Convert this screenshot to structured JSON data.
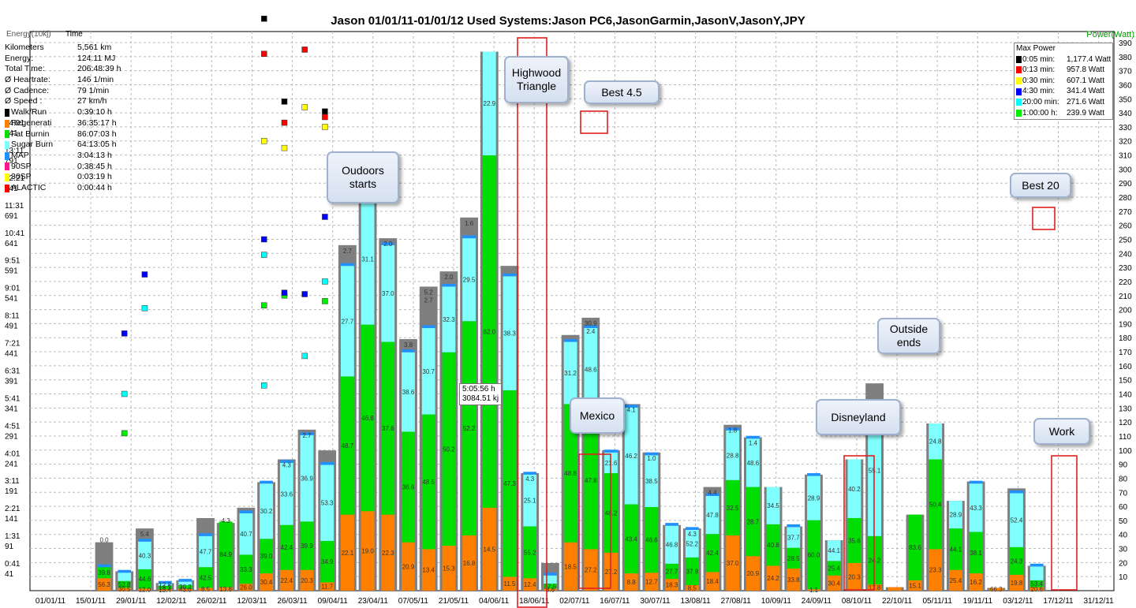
{
  "chart_data": {
    "type": "bar",
    "title": "Jason  01/01/11-01/01/12  Used Systems:Jason PC6,JasonGarmin,JasonV,JasonY,JPY",
    "left_axis_labels": [
      "Energy(10kj)",
      "Time"
    ],
    "right_axis_label": "Power(Watt)",
    "x_ticks": [
      "01/01/11",
      "15/01/11",
      "29/01/11",
      "12/02/11",
      "26/02/11",
      "12/03/11",
      "26/03/11",
      "09/04/11",
      "23/04/11",
      "07/05/11",
      "21/05/11",
      "04/06/11",
      "18/06/11",
      "02/07/11",
      "16/07/11",
      "30/07/11",
      "13/08/11",
      "27/08/11",
      "10/09/11",
      "24/09/11",
      "08/10/11",
      "22/10/11",
      "05/11/11",
      "19/11/11",
      "03/12/11",
      "17/12/11",
      "31/12/11"
    ],
    "y_right_range": [
      0,
      390
    ],
    "y_right_ticks": [
      10,
      20,
      30,
      40,
      50,
      60,
      70,
      80,
      90,
      100,
      110,
      120,
      130,
      140,
      150,
      160,
      170,
      180,
      190,
      200,
      210,
      220,
      230,
      240,
      250,
      260,
      270,
      280,
      290,
      300,
      310,
      320,
      330,
      340,
      350,
      360,
      370,
      380,
      390
    ],
    "y_left_energy_ticks": [
      "41",
      "91",
      "141",
      "191",
      "241",
      "291",
      "341",
      "391",
      "441",
      "491",
      "541",
      "591",
      "641",
      "691",
      "741",
      "791",
      "841"
    ],
    "y_left_time_ticks": [
      "0:41",
      "1:31",
      "2:21",
      "3:11",
      "4:01",
      "4:51",
      "5:41",
      "6:31",
      "7:21",
      "8:11",
      "9:01",
      "9:51",
      "10:41",
      "11:31",
      "12:21",
      "13:11",
      "14:01"
    ],
    "grid": true,
    "series_colors": {
      "total": "#7f7f7f",
      "regeneration": "#ff8000",
      "fat_burning": "#00dd00",
      "sugar_burning": "#80ffff",
      "map": "#1e90ff",
      "sp90": "#ff1493",
      "sp30": "#ffff00",
      "alactic": "#ff0000",
      "walk_run": "#000000"
    },
    "weeks": [
      {
        "x": "29/01/11",
        "total": 70,
        "reg": 18,
        "fat": 16,
        "sug": 0,
        "lbl": [
          "56.3",
          "39.8",
          "0.0"
        ]
      },
      {
        "x": "05/02/11",
        "total": 28,
        "reg": 4,
        "fat": 10,
        "sug": 12,
        "lbl": [
          "30.5",
          "52.8"
        ]
      },
      {
        "x": "12/02/11",
        "total": 90,
        "reg": 3,
        "fat": 28,
        "sug": 40,
        "lbl": [
          "12.0",
          "44.6",
          "40.3",
          "5.4"
        ]
      },
      {
        "x": "19/02/11",
        "total": 11,
        "reg": 2,
        "fat": 5,
        "sug": 3,
        "lbl": [
          "13.4",
          "13.3",
          "12.8"
        ]
      },
      {
        "x": "26/02/11",
        "total": 15,
        "reg": 3,
        "fat": 5,
        "sug": 5,
        "lbl": [
          "43.0",
          "30.2"
        ]
      },
      {
        "x": "03/03/11",
        "total": 105,
        "reg": 4,
        "fat": 30,
        "sug": 45,
        "lbl": [
          "8.5",
          "42.5",
          "47.7"
        ]
      },
      {
        "x": "26/03/11",
        "total": 98,
        "reg": 5,
        "fat": 95,
        "sug": 0,
        "lbl": [
          "13.8",
          "84.9",
          "4.3"
        ]
      },
      {
        "x": "02/04/11",
        "total": 120,
        "reg": 10,
        "fat": 42,
        "sug": 60,
        "lbl": [
          "26.0",
          "33.3",
          "40.7"
        ]
      },
      {
        "x": "09/04/11",
        "total": 157,
        "reg": 25,
        "fat": 50,
        "sug": 80,
        "lbl": [
          "30.4",
          "39.0",
          "30.2"
        ]
      },
      {
        "x": "16/04/11",
        "total": 190,
        "reg": 30,
        "fat": 65,
        "sug": 90,
        "lbl": [
          "22.4",
          "42.4",
          "33.6",
          "4.3"
        ]
      },
      {
        "x": "23/04/11",
        "total": 233,
        "reg": 30,
        "fat": 70,
        "sug": 125,
        "lbl": [
          "20.3",
          "39.9",
          "36.9",
          "2.7"
        ]
      },
      {
        "x": "30/04/11",
        "total": 203,
        "reg": 12,
        "fat": 60,
        "sug": 110,
        "lbl": [
          "11.7",
          "34.9",
          "53.3"
        ]
      },
      {
        "x": "07/05/11",
        "total": 500,
        "reg": 110,
        "fat": 200,
        "sug": 160,
        "lbl": [
          "22.1",
          "48.7",
          "27.7",
          "2.7"
        ]
      },
      {
        "x": "14/05/11",
        "total": 590,
        "reg": 115,
        "fat": 270,
        "sug": 190,
        "lbl": [
          "19.0",
          "46.8",
          "31.1",
          "2.4"
        ]
      },
      {
        "x": "21/05/11",
        "total": 510,
        "reg": 110,
        "fat": 250,
        "sug": 140,
        "lbl": [
          "22.3",
          "37.6",
          "37.0",
          "2.0"
        ]
      },
      {
        "x": "28/05/11",
        "total": 364,
        "reg": 70,
        "fat": 160,
        "sug": 115,
        "lbl": [
          "20.9",
          "36.6",
          "38.6",
          "3.8"
        ]
      },
      {
        "x": "04/06/11",
        "total": 440,
        "reg": 60,
        "fat": 195,
        "sug": 125,
        "lbl": [
          "13.4",
          "48.5",
          "30.7",
          "5.2",
          "2.7"
        ]
      },
      {
        "x": "11/06/11",
        "total": 462,
        "reg": 65,
        "fat": 280,
        "sug": 95,
        "lbl": [
          "15.3",
          "50.2",
          "32.3",
          "2.0"
        ]
      },
      {
        "x": "18/06/11",
        "total": 540,
        "reg": 80,
        "fat": 310,
        "sug": 120,
        "lbl": [
          "16.8",
          "52.2",
          "29.5",
          "1.6"
        ]
      },
      {
        "x": "25/06/11",
        "total": 780,
        "reg": 120,
        "fat": 510,
        "sug": 150,
        "lbl": [
          "14.5",
          "62.0",
          "22.9"
        ]
      },
      {
        "x": "02/07/11",
        "total": 470,
        "reg": 20,
        "fat": 270,
        "sug": 165,
        "lbl": [
          "11.5",
          "47.3",
          "38.3"
        ]
      },
      {
        "x": "09/07/11",
        "total": 170,
        "reg": 18,
        "fat": 75,
        "sug": 75,
        "lbl": [
          "12.4",
          "55.2",
          "25.1",
          "4.3"
        ]
      },
      {
        "x": "16/07/11",
        "total": 40,
        "reg": 3,
        "fat": 7,
        "sug": 12,
        "lbl": [
          "3.6",
          "37.5"
        ]
      },
      {
        "x": "23/07/11",
        "total": 370,
        "reg": 70,
        "fat": 200,
        "sug": 90,
        "lbl": [
          "18.5",
          "48.8",
          "31.2"
        ]
      },
      {
        "x": "30/07/11",
        "total": 395,
        "reg": 60,
        "fat": 200,
        "sug": 120,
        "lbl": [
          "27.2",
          "47.8",
          "48.6",
          "30.9",
          "2.4"
        ]
      },
      {
        "x": "06/08/11",
        "total": 203,
        "reg": 55,
        "fat": 115,
        "sug": 30,
        "lbl": [
          "27.2",
          "48.2",
          "21.6"
        ]
      },
      {
        "x": "13/08/11",
        "total": 270,
        "reg": 25,
        "fat": 100,
        "sug": 140,
        "lbl": [
          "8.8",
          "43.4",
          "46.2",
          "4.1"
        ]
      },
      {
        "x": "20/08/11",
        "total": 200,
        "reg": 26,
        "fat": 95,
        "sug": 75,
        "lbl": [
          "12.7",
          "46.6",
          "38.5",
          "1.0"
        ]
      },
      {
        "x": "27/08/11",
        "total": 95,
        "reg": 17,
        "fat": 22,
        "sug": 55,
        "lbl": [
          "18.3",
          "27.7",
          "46.8"
        ]
      },
      {
        "x": "03/09/11",
        "total": 90,
        "reg": 8,
        "fat": 40,
        "sug": 40,
        "lbl": [
          "8.5",
          "37.8",
          "52.2",
          "4.3"
        ]
      },
      {
        "x": "10/09/11",
        "total": 150,
        "reg": 27,
        "fat": 55,
        "sug": 55,
        "lbl": [
          "18.4",
          "42.4",
          "47.8",
          "4.4"
        ]
      },
      {
        "x": "17/09/11",
        "total": 240,
        "reg": 80,
        "fat": 80,
        "sug": 72,
        "lbl": [
          "37.0",
          "32.5",
          "28.8",
          "1.8"
        ]
      },
      {
        "x": "24/09/11",
        "total": 222,
        "reg": 50,
        "fat": 100,
        "sug": 70,
        "lbl": [
          "20.9",
          "28.7",
          "48.6",
          "1.4"
        ]
      },
      {
        "x": "01/10/11",
        "total": 150,
        "reg": 36,
        "fat": 60,
        "sug": 54,
        "lbl": [
          "24.2",
          "40.8",
          "34.5"
        ]
      },
      {
        "x": "08/10/11",
        "total": 93,
        "reg": 32,
        "fat": 30,
        "sug": 30,
        "lbl": [
          "33.8",
          "28.5",
          "37.7"
        ]
      },
      {
        "x": "15/10/11",
        "total": 168,
        "reg": 2,
        "fat": 100,
        "sug": 64,
        "lbl": [
          "1.1",
          "60.0",
          "28.9"
        ]
      },
      {
        "x": "22/10/11",
        "total": 73,
        "reg": 22,
        "fat": 21,
        "sug": 30,
        "lbl": [
          "30.4",
          "25.4",
          "44.1"
        ]
      },
      {
        "x": "29/10/11",
        "total": 190,
        "reg": 40,
        "fat": 65,
        "sug": 85,
        "lbl": [
          "20.3",
          "35.6",
          "40.2"
        ]
      },
      {
        "x": "05/11/11",
        "total": 300,
        "reg": 9,
        "fat": 70,
        "sug": 190,
        "lbl": [
          "17.8",
          "24.2",
          "55.1"
        ]
      },
      {
        "x": "12/11/11",
        "total": 5,
        "reg": 5,
        "fat": 0,
        "sug": 0,
        "lbl": []
      },
      {
        "x": "19/11/11",
        "total": 110,
        "reg": 15,
        "fat": 95,
        "sug": 0,
        "lbl": [
          "15.1",
          "83.6"
        ]
      },
      {
        "x": "26/11/11",
        "total": 242,
        "reg": 60,
        "fat": 130,
        "sug": 52,
        "lbl": [
          "23.3",
          "50.4",
          "24.8"
        ]
      },
      {
        "x": "03/12/11",
        "total": 130,
        "reg": 30,
        "fat": 60,
        "sug": 40,
        "lbl": [
          "25.4",
          "44.1",
          "28.9"
        ]
      },
      {
        "x": "10/12/11",
        "total": 158,
        "reg": 25,
        "fat": 60,
        "sug": 70,
        "lbl": [
          "16.2",
          "38.1",
          "43.3"
        ]
      },
      {
        "x": "17/12/11",
        "total": 4,
        "reg": 4,
        "fat": 0,
        "sug": 0,
        "lbl": [
          "66.3"
        ]
      },
      {
        "x": "24/12/11",
        "total": 148,
        "reg": 23,
        "fat": 40,
        "sug": 78,
        "lbl": [
          "19.8",
          "24.3",
          "52.4"
        ]
      },
      {
        "x": "31/12/11",
        "total": 36,
        "reg": 5,
        "fat": 10,
        "sug": 20,
        "lbl": [
          "20.6",
          "53.4"
        ]
      }
    ],
    "max_power": [
      {
        "duration": "0:05 min:",
        "value": "1,177.4 Watt",
        "color": "#000000"
      },
      {
        "duration": "0:13 min:",
        "value": "957.8 Watt",
        "color": "#ff0000"
      },
      {
        "duration": "0:30 min:",
        "value": "607.1 Watt",
        "color": "#ffff00"
      },
      {
        "duration": "4:30 min:",
        "value": "341.4 Watt",
        "color": "#0000ff"
      },
      {
        "duration": "20:00 min:",
        "value": "271.6 Watt",
        "color": "#00ffff"
      },
      {
        "duration": "1:00:00 h:",
        "value": "239.9 Watt",
        "color": "#00ee00"
      }
    ],
    "power_markers": [
      {
        "c": "#00ee00",
        "x": 1,
        "y": 112
      },
      {
        "c": "#00ffff",
        "x": 1,
        "y": 140
      },
      {
        "c": "#0000ff",
        "x": 1,
        "y": 183
      },
      {
        "c": "#00ffff",
        "x": 2,
        "y": 201
      },
      {
        "c": "#0000ff",
        "x": 2,
        "y": 225
      },
      {
        "c": "#00ee00",
        "x": 4,
        "y": 203
      },
      {
        "c": "#00ffff",
        "x": 4,
        "y": 239
      },
      {
        "c": "#0000ff",
        "x": 4,
        "y": 250
      },
      {
        "c": "#00ffff",
        "x": 4,
        "y": 146
      },
      {
        "c": "#ffff00",
        "x": 4,
        "y": 320
      },
      {
        "c": "#ff0000",
        "x": 4,
        "y": 382
      },
      {
        "c": "#000000",
        "x": 4,
        "y": 407
      },
      {
        "c": "#00ee00",
        "x": 5,
        "y": 210
      },
      {
        "c": "#0000ff",
        "x": 5,
        "y": 212
      },
      {
        "c": "#ff0000",
        "x": 5,
        "y": 333
      },
      {
        "c": "#ffff00",
        "x": 5,
        "y": 315
      },
      {
        "c": "#000000",
        "x": 5,
        "y": 348
      },
      {
        "c": "#00ffff",
        "x": 6,
        "y": 167
      },
      {
        "c": "#0000ff",
        "x": 6,
        "y": 211
      },
      {
        "c": "#ffff00",
        "x": 6,
        "y": 344
      },
      {
        "c": "#ff0000",
        "x": 6,
        "y": 385
      },
      {
        "c": "#00ffff",
        "x": 7,
        "y": 220
      },
      {
        "c": "#00ee00",
        "x": 7,
        "y": 206
      },
      {
        "c": "#0000ff",
        "x": 7,
        "y": 266
      },
      {
        "c": "#ff0000",
        "x": 7,
        "y": 337
      },
      {
        "c": "#ffff00",
        "x": 7,
        "y": 330
      },
      {
        "c": "#000000",
        "x": 7,
        "y": 341
      }
    ]
  },
  "stats": [
    {
      "label": "Kilometers",
      "value": "5,561 km",
      "color": ""
    },
    {
      "label": "Energy:",
      "value": "124.11 MJ",
      "color": ""
    },
    {
      "label": "Total Time:",
      "value": "206:48:39 h",
      "color": ""
    },
    {
      "label": "Ø Heartrate:",
      "value": "146 1/min",
      "color": ""
    },
    {
      "label": "Ø Cadence:",
      "value": "79 1/min",
      "color": ""
    },
    {
      "label": "Ø Speed :",
      "value": "27 km/h",
      "color": ""
    },
    {
      "label": "Walk/Run",
      "value": "0:39:10 h",
      "color": "#000000"
    },
    {
      "label": "Regenerati",
      "value": "36:35:17 h",
      "color": "#ff8000"
    },
    {
      "label": "Fat Burnin",
      "value": "86:07:03 h",
      "color": "#00dd00"
    },
    {
      "label": "Sugar Burn",
      "value": "64:13:05 h",
      "color": "#80ffff"
    },
    {
      "label": "MAP",
      "value": "3:04:13 h",
      "color": "#1e90ff"
    },
    {
      "label": "90SP",
      "value": "0:38:45 h",
      "color": "#ff1493"
    },
    {
      "label": "30SP",
      "value": "0:03:19 h",
      "color": "#ffff00"
    },
    {
      "label": "ALACTIC",
      "value": "0:00:44 h",
      "color": "#ff0000"
    }
  ],
  "max_power_title": "Max Power",
  "callouts": {
    "highwood": "Highwood Triangle",
    "best45": "Best 4.5",
    "outdoors": "Oudoors starts",
    "mexico": "Mexico",
    "disneyland": "Disneyland",
    "outside": "Outside ends",
    "best20": "Best 20",
    "work": "Work"
  },
  "tooltip": {
    "line1": "5:05:56 h",
    "line2": "3084.51 kj"
  }
}
